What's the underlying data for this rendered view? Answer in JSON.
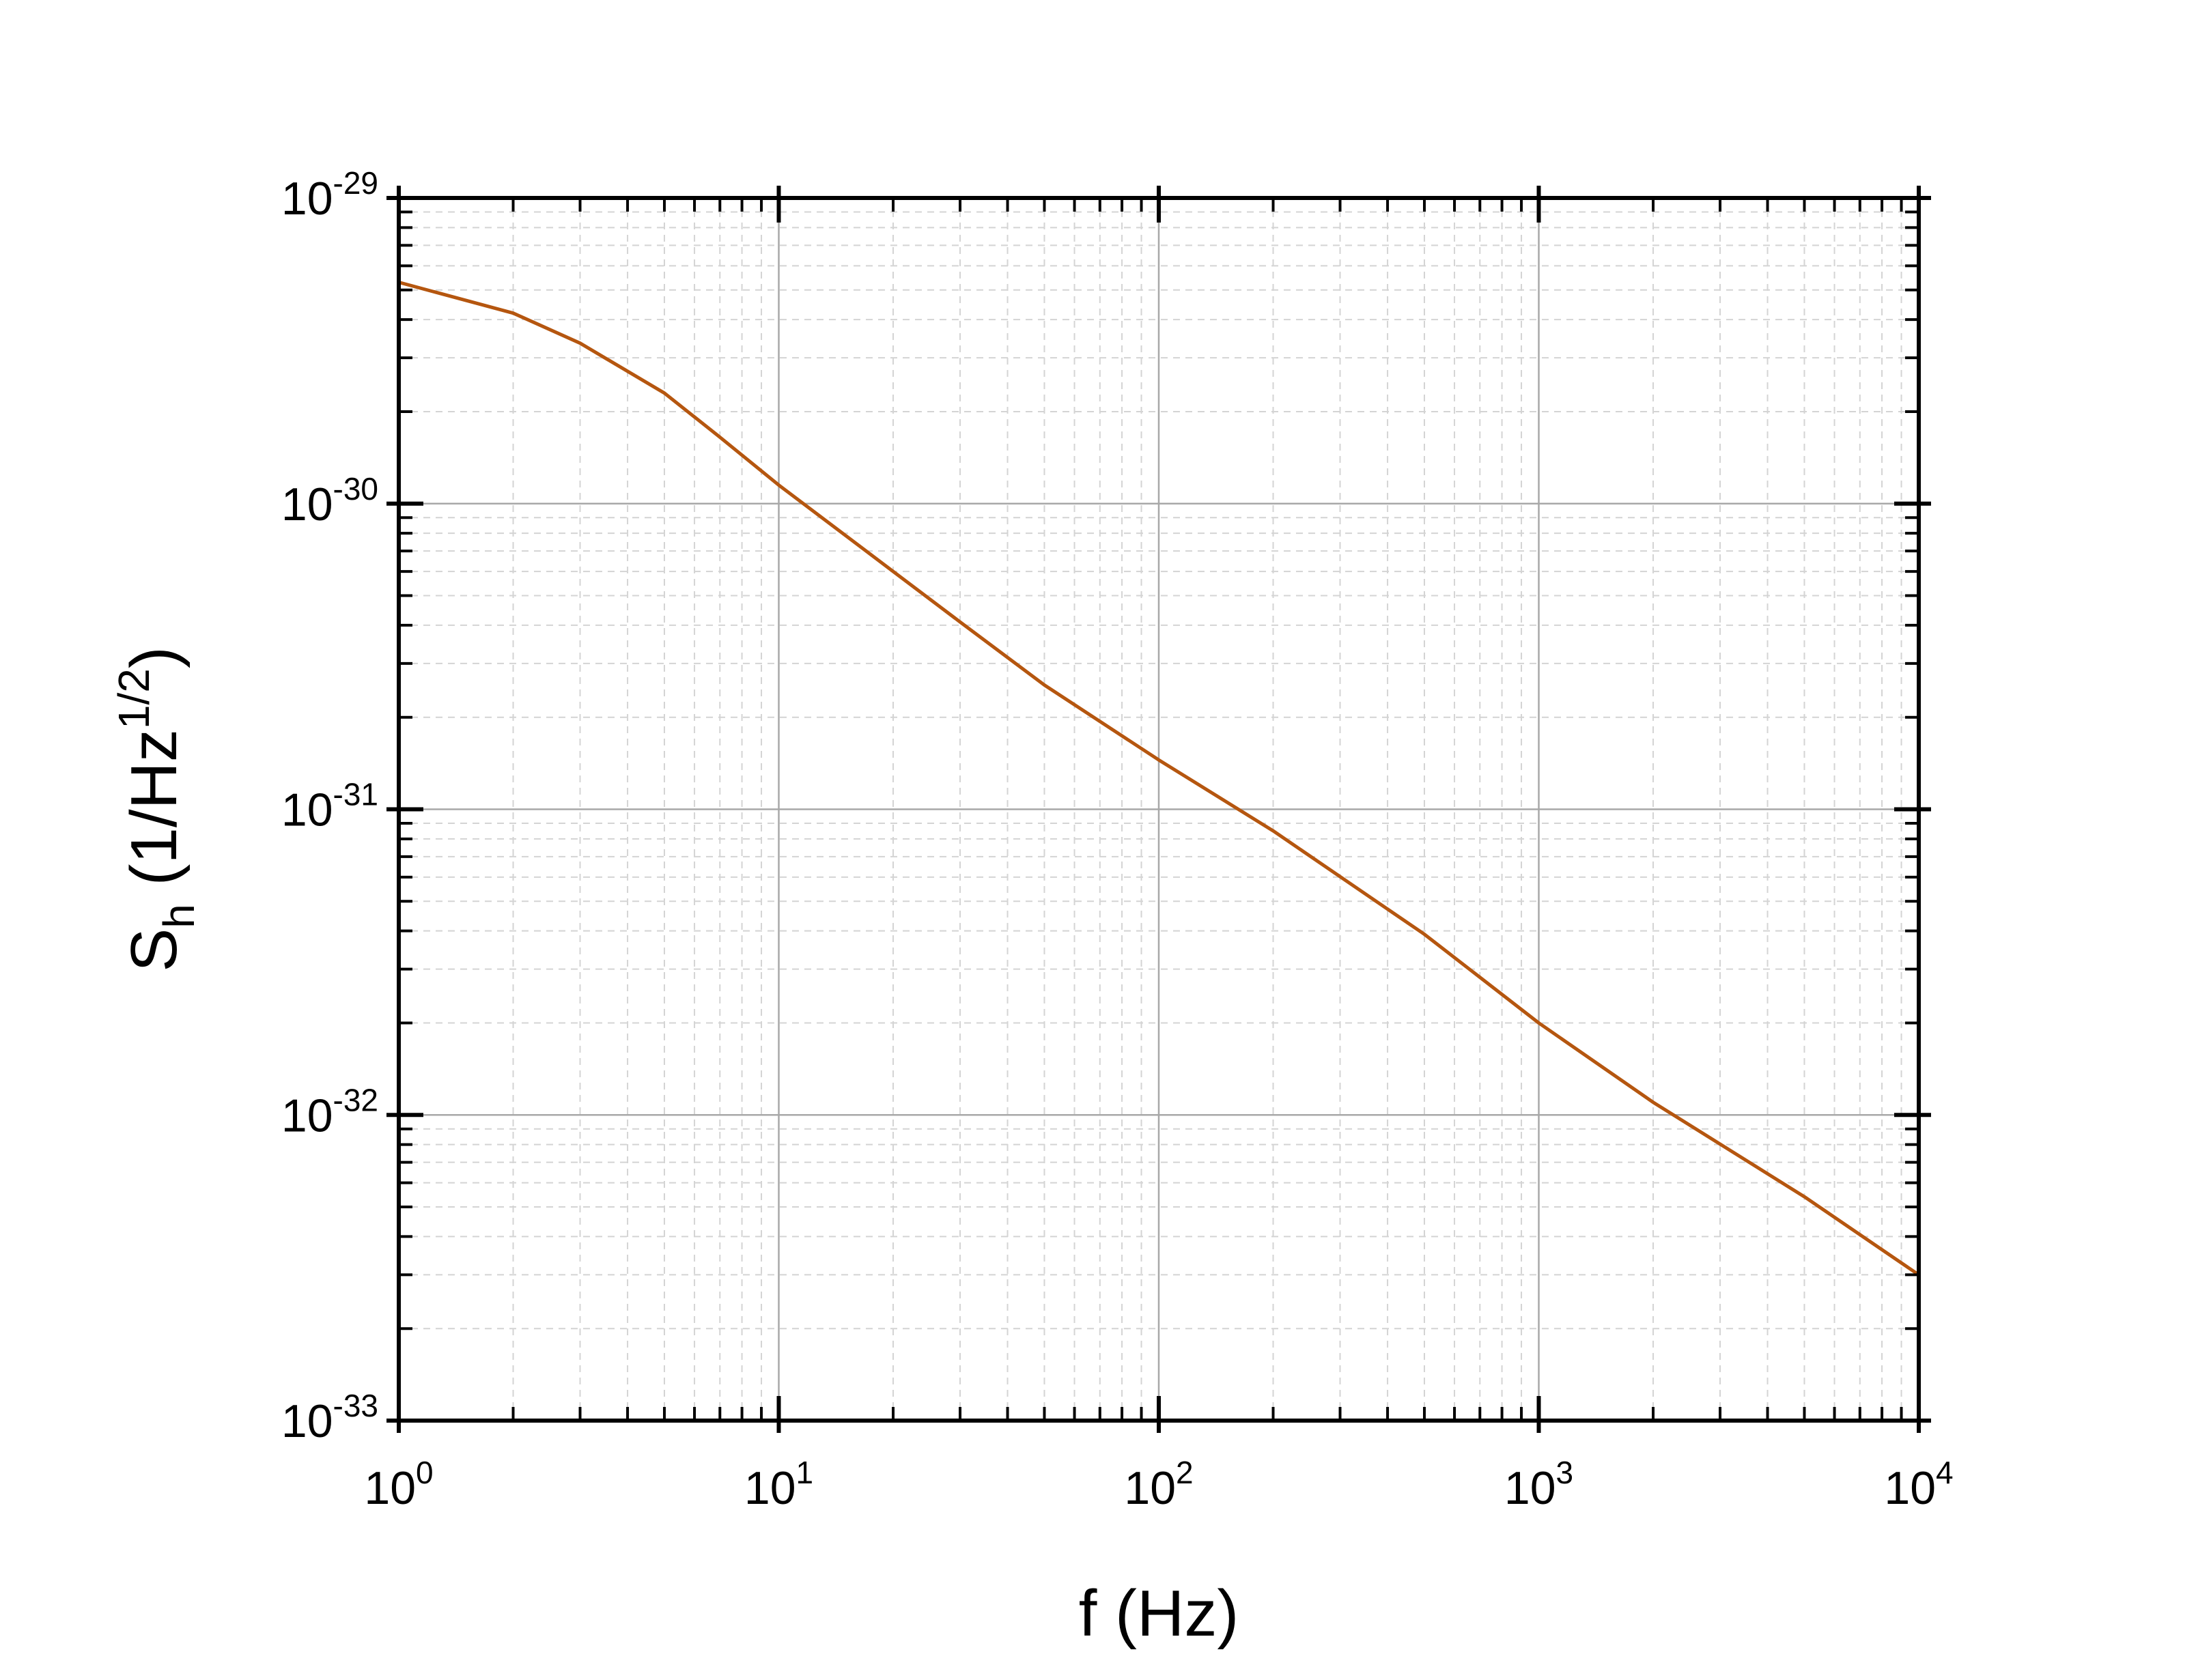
{
  "chart_data": {
    "type": "line",
    "title": "",
    "xlabel": "f (Hz)",
    "ylabel_parts": {
      "symbol": "S",
      "subscript": "h",
      "unit_open": " (1/Hz",
      "unit_sup": "1/2",
      "unit_close": ")"
    },
    "x_scale": "log",
    "y_scale": "log",
    "xlim": [
      1,
      10000
    ],
    "ylim": [
      1e-33,
      1e-29
    ],
    "x_ticks": [
      {
        "base": "10",
        "exp": "0"
      },
      {
        "base": "10",
        "exp": "1"
      },
      {
        "base": "10",
        "exp": "2"
      },
      {
        "base": "10",
        "exp": "3"
      },
      {
        "base": "10",
        "exp": "4"
      }
    ],
    "y_ticks": [
      {
        "base": "10",
        "exp": "-33"
      },
      {
        "base": "10",
        "exp": "-32"
      },
      {
        "base": "10",
        "exp": "-31"
      },
      {
        "base": "10",
        "exp": "-30"
      },
      {
        "base": "10",
        "exp": "-29"
      }
    ],
    "grid": "major and minor",
    "series": [
      {
        "color": "#b5560f",
        "x": [
          1,
          2,
          3,
          5,
          7,
          10,
          20,
          30,
          50,
          100,
          200,
          500,
          1000,
          2000,
          5000,
          10000
        ],
        "y": [
          5.3e-30,
          4.2e-30,
          3.35e-30,
          2.3e-30,
          1.65e-30,
          1.15e-30,
          6e-31,
          4.1e-31,
          2.55e-31,
          1.45e-31,
          8.5e-32,
          3.9e-32,
          2e-32,
          1.1e-32,
          5.4e-33,
          3e-33
        ]
      }
    ]
  }
}
